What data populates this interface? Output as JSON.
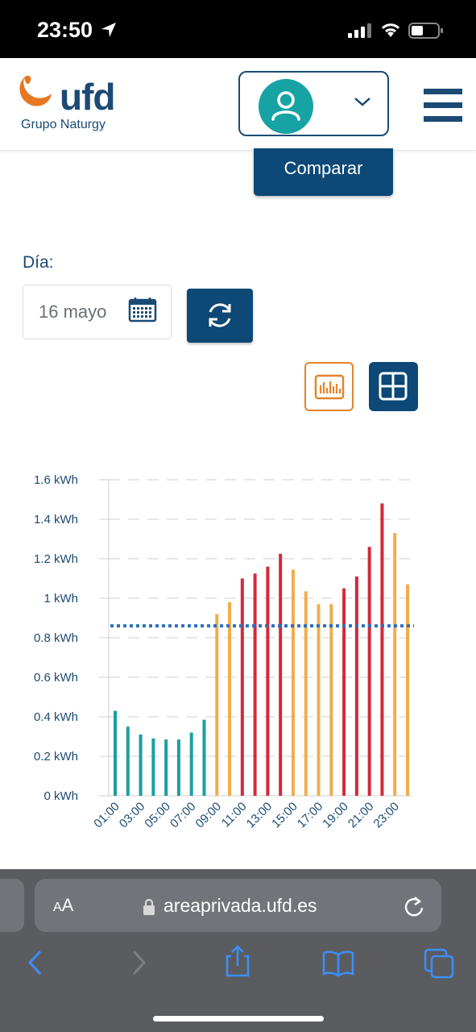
{
  "status": {
    "time": "23:50"
  },
  "header": {
    "brand": "ufd",
    "subtitle": "Grupo Naturgy"
  },
  "compare_label": "Comparar",
  "filters": {
    "day_label": "Día:",
    "date_value": "16 mayo"
  },
  "colors": {
    "navy": "#0d4876",
    "teal": "#17a3a3",
    "orange": "#e5832a",
    "bar_teal": "#1a9fa3",
    "bar_yellow": "#f0ad4e",
    "bar_red": "#d2293a",
    "avg_line": "#2a6fbf"
  },
  "chart_data": {
    "type": "bar",
    "y_ticks": [
      "0 kWh",
      "0.2 kWh",
      "0.4 kWh",
      "0.6 kWh",
      "0.8 kWh",
      "1 kWh",
      "1.2 kWh",
      "1.4 kWh",
      "1.6 kWh"
    ],
    "ylim": [
      0,
      1.6
    ],
    "x_tick_labels": [
      "01:00",
      "03:00",
      "05:00",
      "07:00",
      "09:00",
      "11:00",
      "13:00",
      "15:00",
      "17:00",
      "19:00",
      "21:00",
      "23:00"
    ],
    "categories": [
      "01:00",
      "02:00",
      "03:00",
      "04:00",
      "05:00",
      "06:00",
      "07:00",
      "08:00",
      "09:00",
      "10:00",
      "11:00",
      "12:00",
      "13:00",
      "14:00",
      "15:00",
      "16:00",
      "17:00",
      "18:00",
      "19:00",
      "20:00",
      "21:00",
      "22:00",
      "23:00",
      "24:00"
    ],
    "values": [
      0.43,
      0.35,
      0.31,
      0.29,
      0.285,
      0.285,
      0.32,
      0.385,
      0.92,
      0.98,
      1.1,
      1.125,
      1.16,
      1.225,
      1.145,
      1.035,
      0.97,
      0.97,
      1.05,
      1.11,
      1.26,
      1.48,
      1.33,
      1.07
    ],
    "period": [
      "valle",
      "valle",
      "valle",
      "valle",
      "valle",
      "valle",
      "valle",
      "valle",
      "llano",
      "llano",
      "punta",
      "punta",
      "punta",
      "punta",
      "llano",
      "llano",
      "llano",
      "llano",
      "punta",
      "punta",
      "punta",
      "punta",
      "llano",
      "llano"
    ],
    "average": 0.86,
    "grid": "dashed horizontal"
  },
  "browser": {
    "text_size_label": "AA",
    "url": "areaprivada.ufd.es"
  }
}
